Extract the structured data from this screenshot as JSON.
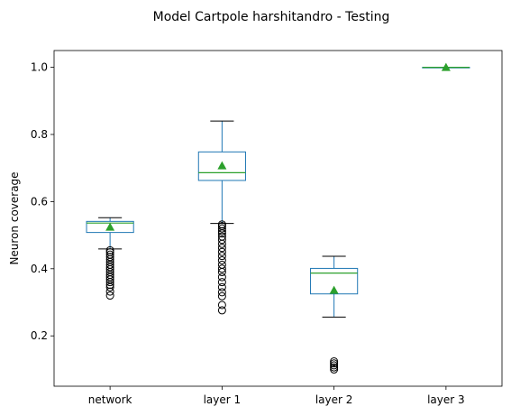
{
  "chart_data": {
    "type": "box",
    "title": "Model Cartpole harshitandro - Testing",
    "xlabel": "",
    "ylabel": "Neuron coverage",
    "ylim": [
      0.05,
      1.05
    ],
    "yticks": [
      "0.2",
      "0.4",
      "0.6",
      "0.8",
      "1.0"
    ],
    "ytick_values": [
      0.2,
      0.4,
      0.6,
      0.8,
      1.0
    ],
    "categories": [
      "network",
      "layer 1",
      "layer 2",
      "layer 3"
    ],
    "boxes": [
      {
        "q1": 0.508,
        "median": 0.536,
        "q3": 0.541,
        "whisker_low": 0.459,
        "whisker_high": 0.552,
        "mean": 0.524,
        "outliers": [
          0.32,
          0.332,
          0.345,
          0.352,
          0.36,
          0.368,
          0.375,
          0.382,
          0.39,
          0.398,
          0.405,
          0.412,
          0.42,
          0.428,
          0.435,
          0.442,
          0.449,
          0.455
        ]
      },
      {
        "q1": 0.663,
        "median": 0.686,
        "q3": 0.748,
        "whisker_low": 0.535,
        "whisker_high": 0.84,
        "mean": 0.707,
        "outliers": [
          0.276,
          0.292,
          0.318,
          0.33,
          0.345,
          0.36,
          0.375,
          0.39,
          0.4,
          0.412,
          0.425,
          0.438,
          0.45,
          0.462,
          0.474,
          0.486,
          0.496,
          0.505,
          0.512,
          0.52,
          0.527,
          0.532
        ]
      },
      {
        "q1": 0.325,
        "median": 0.387,
        "q3": 0.401,
        "whisker_low": 0.256,
        "whisker_high": 0.437,
        "mean": 0.336,
        "outliers": [
          0.1,
          0.106,
          0.112,
          0.118,
          0.124
        ]
      },
      {
        "q1": 1.0,
        "median": 1.0,
        "q3": 1.0,
        "whisker_low": 1.0,
        "whisker_high": 1.0,
        "mean": 1.0,
        "outliers": []
      }
    ],
    "box_color": "#1f77b4",
    "median_color": "#2ca02c",
    "mean_marker_color": "#2ca02c",
    "outlier_color": "#000000",
    "grid": false,
    "legend": "none"
  }
}
